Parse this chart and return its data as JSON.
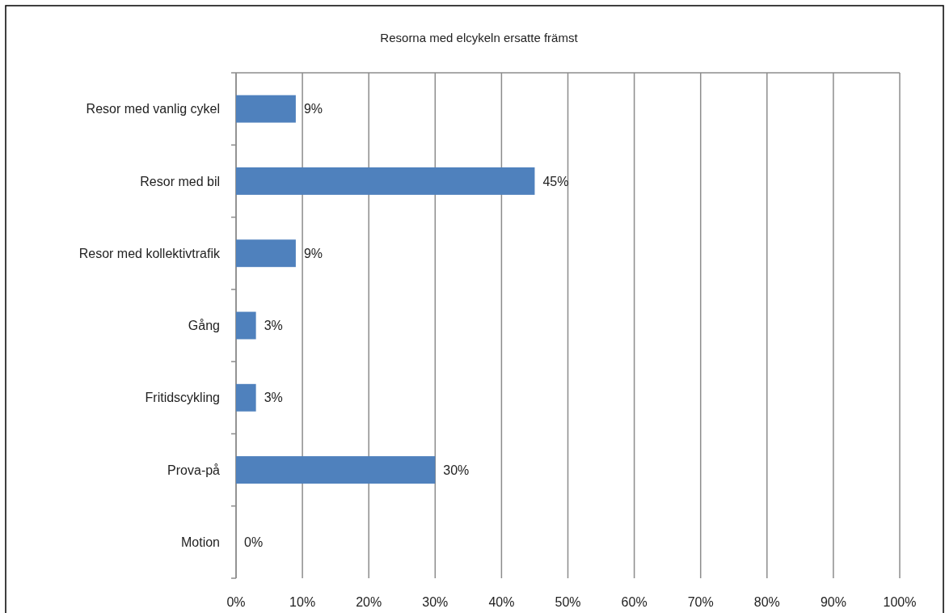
{
  "chart_data": {
    "type": "bar",
    "orientation": "horizontal",
    "title": "Resorna med elcykeln ersatte främst",
    "categories": [
      "Resor med vanlig cykel",
      "Resor med bil",
      "Resor med kollektivtrafik",
      "Gång",
      "Fritidscykling",
      "Prova-på",
      "Motion"
    ],
    "values": [
      9,
      45,
      9,
      3,
      3,
      30,
      0
    ],
    "value_labels": [
      "9%",
      "45%",
      "9%",
      "3%",
      "3%",
      "30%",
      "0%"
    ],
    "color": "#4f81bd",
    "xlim": [
      0,
      100
    ],
    "xticks": [
      {
        "value": 0,
        "label": "0%"
      },
      {
        "value": 10,
        "label": "10%"
      },
      {
        "value": 20,
        "label": "20%"
      },
      {
        "value": 30,
        "label": "30%"
      },
      {
        "value": 40,
        "label": "40%"
      },
      {
        "value": 50,
        "label": "50%"
      },
      {
        "value": 60,
        "label": "60%"
      },
      {
        "value": 70,
        "label": "70%"
      },
      {
        "value": 80,
        "label": "80%"
      },
      {
        "value": 90,
        "label": "90%"
      },
      {
        "value": 100,
        "label": "100%"
      }
    ],
    "grid": "x"
  }
}
